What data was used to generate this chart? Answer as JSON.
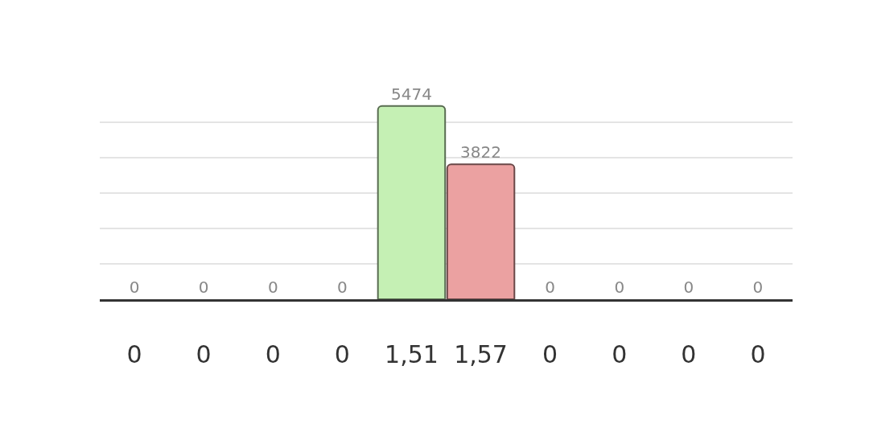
{
  "chart_data": {
    "type": "bar",
    "categories": [
      "0",
      "0",
      "0",
      "0",
      "1,51",
      "1,57",
      "0",
      "0",
      "0",
      "0"
    ],
    "values": [
      0,
      0,
      0,
      0,
      5474,
      3822,
      0,
      0,
      0,
      0
    ],
    "colors": [
      "#c5f0b4",
      "#c5f0b4",
      "#c5f0b4",
      "#c5f0b4",
      "#c5f0b4",
      "#eba1a1",
      "#eba1a1",
      "#eba1a1",
      "#eba1a1",
      "#eba1a1"
    ],
    "tick_labels": "x",
    "grid": "y",
    "data_labels": true
  }
}
